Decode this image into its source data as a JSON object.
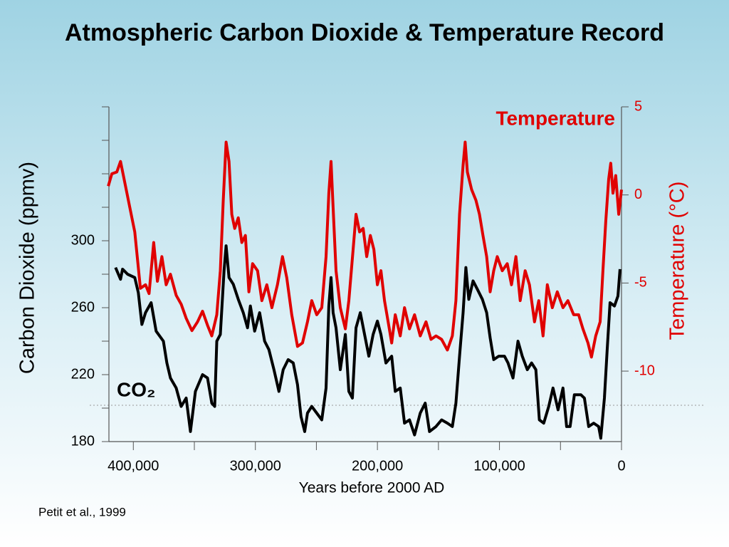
{
  "chart_data": {
    "type": "line",
    "title": "Atmospheric Carbon Dioxide & Temperature Record",
    "xlabel": "Years before 2000 AD",
    "ylabel": "Carbon Dioxide (ppmv)",
    "y2label": "Temperature (°C)",
    "source": "Petit et al., 1999",
    "xlim": [
      420000,
      0
    ],
    "xticks": [
      {
        "value": 400000,
        "label": "400,000"
      },
      {
        "value": 300000,
        "label": "300,000"
      },
      {
        "value": 200000,
        "label": "200,000"
      },
      {
        "value": 100000,
        "label": "100,000"
      },
      0
    ],
    "xticks_minor": [
      350000,
      250000,
      150000,
      50000
    ],
    "ylim": [
      180,
      380
    ],
    "yticks": [
      180,
      220,
      260,
      300
    ],
    "yticks_minor": [
      200,
      240,
      280,
      320,
      340,
      360,
      380
    ],
    "y2lim": [
      -14,
      5
    ],
    "y2ticks": [
      -10,
      -5,
      0,
      5
    ],
    "series": [
      {
        "name": "CO₂",
        "color": "#000000",
        "x": [
          414600,
          410500,
          408800,
          404700,
          398800,
          395900,
          393000,
          390000,
          385400,
          381300,
          375400,
          372500,
          369600,
          364900,
          360800,
          356700,
          353200,
          349100,
          343300,
          339200,
          335700,
          333300,
          331600,
          328700,
          325700,
          324000,
          321600,
          318100,
          314000,
          309900,
          306400,
          304100,
          300600,
          296500,
          292400,
          288900,
          284800,
          280700,
          277200,
          273100,
          269000,
          265500,
          262600,
          259600,
          257300,
          253800,
          249700,
          245600,
          242100,
          239800,
          238000,
          236300,
          233900,
          230400,
          226300,
          223400,
          220500,
          217500,
          214000,
          210500,
          207000,
          203500,
          200000,
          197100,
          193000,
          188300,
          185400,
          181300,
          177800,
          173700,
          169600,
          164900,
          160800,
          157300,
          152000,
          147400,
          142700,
          138600,
          135700,
          132700,
          129800,
          127500,
          125100,
          121600,
          118100,
          114000,
          110500,
          107600,
          104700,
          100600,
          95900,
          93000,
          88900,
          84800,
          81300,
          77200,
          73700,
          70200,
          67300,
          63700,
          59600,
          56100,
          52000,
          47950,
          45000,
          42100,
          38600,
          33300,
          30400,
          26900,
          22800,
          18700,
          17000,
          14000,
          11700,
          9400,
          5800,
          2900,
          1200
        ],
        "values": [
          284,
          277,
          283,
          280,
          278,
          269,
          250,
          257,
          263,
          246,
          240,
          227,
          218,
          212,
          201,
          206,
          186,
          210,
          220,
          218,
          203,
          201,
          240,
          244,
          282,
          297,
          278,
          274,
          265,
          257,
          248,
          261,
          246,
          257,
          240,
          235,
          223,
          210,
          223,
          229,
          227,
          214,
          195,
          186,
          197,
          201,
          197,
          193,
          212,
          261,
          278,
          257,
          248,
          223,
          244,
          210,
          206,
          248,
          257,
          244,
          231,
          244,
          252,
          244,
          227,
          231,
          210,
          212,
          191,
          193,
          184,
          197,
          203,
          186,
          189,
          193,
          191,
          189,
          203,
          231,
          257,
          284,
          265,
          276,
          271,
          265,
          257,
          242,
          229,
          231,
          231,
          227,
          218,
          240,
          231,
          223,
          227,
          223,
          193,
          191,
          201,
          212,
          199,
          212,
          189,
          189,
          208,
          208,
          206,
          189,
          191,
          189,
          182,
          206,
          235,
          263,
          261,
          267,
          283
        ]
      },
      {
        "name": "Temperature",
        "color": "#e00000",
        "axis": "y2",
        "x": [
          420500,
          417600,
          413500,
          410500,
          407600,
          403500,
          398800,
          394200,
          390000,
          387100,
          383300,
          380300,
          376600,
          373100,
          369600,
          364900,
          360800,
          356700,
          352000,
          347400,
          343300,
          339200,
          335700,
          331600,
          328700,
          326300,
          324000,
          321600,
          319300,
          316900,
          314000,
          311100,
          308200,
          305300,
          302300,
          298200,
          294700,
          290600,
          286500,
          281900,
          277800,
          274300,
          270200,
          265500,
          261400,
          257300,
          253800,
          249700,
          245600,
          242100,
          239800,
          238000,
          236300,
          233900,
          230400,
          226300,
          223400,
          219900,
          217500,
          214600,
          211700,
          208800,
          205800,
          202900,
          200000,
          197100,
          194200,
          191200,
          188300,
          185400,
          181300,
          177800,
          173700,
          169600,
          164900,
          160200,
          156100,
          152000,
          147400,
          142700,
          138600,
          135700,
          132700,
          129800,
          128100,
          126300,
          122800,
          119300,
          116400,
          113500,
          110500,
          107600,
          104700,
          101800,
          97700,
          93600,
          90100,
          86500,
          83000,
          78900,
          75400,
          71300,
          67800,
          64300,
          60800,
          56700,
          52600,
          47950,
          43900,
          39200,
          35100,
          31600,
          27500,
          24600,
          21100,
          17500,
          15200,
          12900,
          10500,
          8800,
          7000,
          4700,
          2300,
          0
        ],
        "values": [
          0.5,
          1.2,
          1.3,
          1.9,
          0.9,
          -0.5,
          -2.1,
          -5.3,
          -5.1,
          -5.6,
          -2.7,
          -4.9,
          -3.5,
          -5.1,
          -4.5,
          -5.7,
          -6.2,
          -7.0,
          -7.7,
          -7.2,
          -6.6,
          -7.4,
          -8.0,
          -6.8,
          -4.3,
          -0.3,
          3.0,
          1.9,
          -1.1,
          -1.9,
          -1.3,
          -2.7,
          -2.3,
          -5.5,
          -3.9,
          -4.3,
          -6.0,
          -5.1,
          -6.4,
          -5.1,
          -3.5,
          -4.7,
          -6.8,
          -8.6,
          -8.4,
          -7.2,
          -6.0,
          -6.8,
          -6.4,
          -3.5,
          0.1,
          1.9,
          -0.7,
          -4.3,
          -6.4,
          -7.6,
          -6.0,
          -3.1,
          -1.1,
          -2.1,
          -1.9,
          -3.5,
          -2.3,
          -3.1,
          -5.1,
          -4.3,
          -6.0,
          -7.2,
          -8.4,
          -6.8,
          -8.0,
          -6.4,
          -7.6,
          -6.8,
          -8.0,
          -7.2,
          -8.2,
          -8.0,
          -8.2,
          -8.8,
          -8.0,
          -6.0,
          -1.1,
          1.7,
          3.0,
          1.3,
          0.3,
          -0.3,
          -1.1,
          -2.3,
          -3.5,
          -5.5,
          -4.3,
          -3.5,
          -4.3,
          -3.9,
          -5.1,
          -3.5,
          -6.0,
          -4.3,
          -5.1,
          -7.2,
          -6.0,
          -8.0,
          -5.1,
          -6.4,
          -5.5,
          -6.4,
          -6.0,
          -6.8,
          -6.8,
          -7.6,
          -8.4,
          -9.2,
          -8.0,
          -7.2,
          -4.3,
          -1.5,
          0.9,
          1.8,
          0.1,
          1.1,
          -1.1,
          0.3
        ]
      }
    ]
  }
}
